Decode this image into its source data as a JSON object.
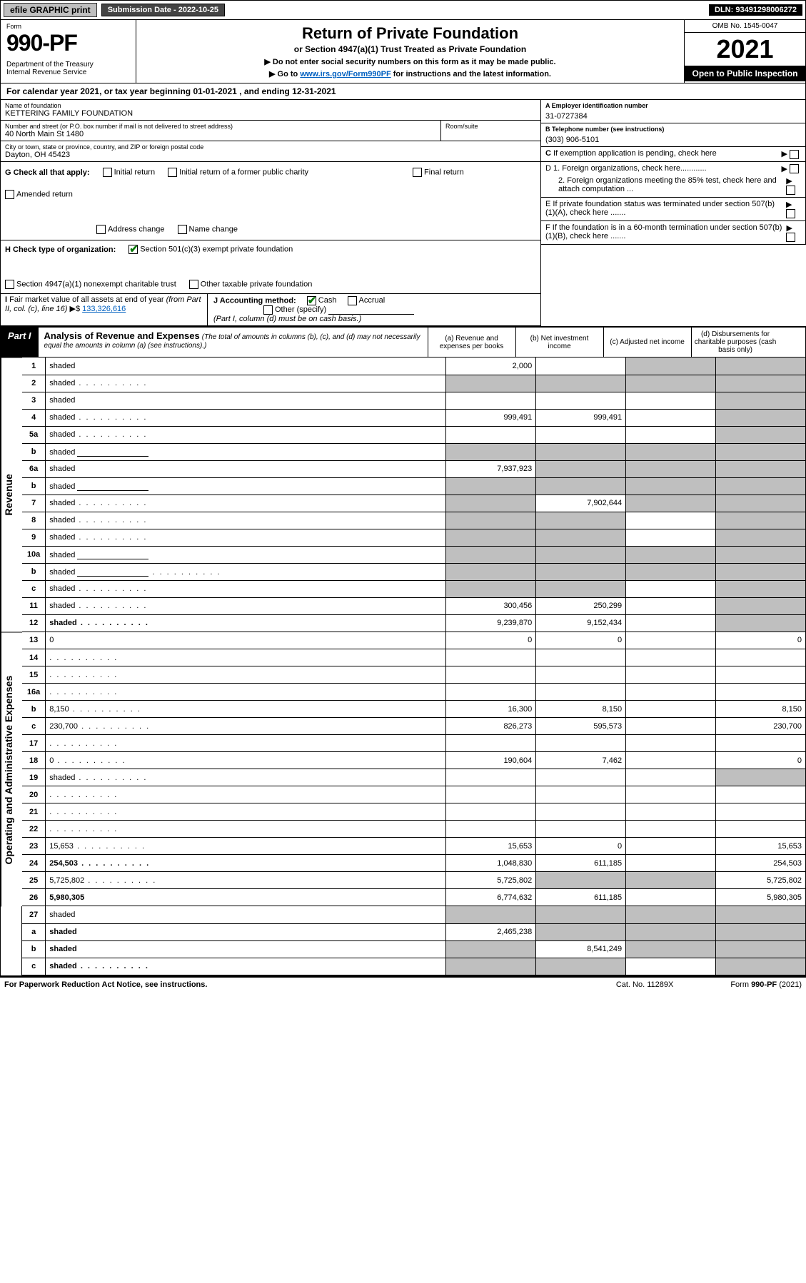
{
  "topbar": {
    "efile": "efile GRAPHIC print",
    "submission": "Submission Date - 2022-10-25",
    "dln": "DLN: 93491298006272"
  },
  "header": {
    "form_label": "Form",
    "form_no": "990-PF",
    "dept": "Department of the Treasury\nInternal Revenue Service",
    "title": "Return of Private Foundation",
    "subtitle": "or Section 4947(a)(1) Trust Treated as Private Foundation",
    "note1": "▶ Do not enter social security numbers on this form as it may be made public.",
    "note2_prefix": "▶ Go to ",
    "note2_link": "www.irs.gov/Form990PF",
    "note2_suffix": " for instructions and the latest information.",
    "omb": "OMB No. 1545-0047",
    "year": "2021",
    "open": "Open to Public Inspection"
  },
  "calyear": "For calendar year 2021, or tax year beginning 01-01-2021             , and ending 12-31-2021",
  "info": {
    "name_label": "Name of foundation",
    "name": "KETTERING FAMILY FOUNDATION",
    "addr_label": "Number and street (or P.O. box number if mail is not delivered to street address)",
    "addr": "40 North Main St 1480",
    "room_label": "Room/suite",
    "city_label": "City or town, state or province, country, and ZIP or foreign postal code",
    "city": "Dayton, OH  45423",
    "a_label": "A Employer identification number",
    "a_val": "31-0727384",
    "b_label": "B Telephone number (see instructions)",
    "b_val": "(303) 906-5101",
    "c_label": "C If exemption application is pending, check here",
    "g_label": "G Check all that apply:",
    "g_opts": [
      "Initial return",
      "Initial return of a former public charity",
      "Final return",
      "Amended return",
      "Address change",
      "Name change"
    ],
    "d1": "D 1. Foreign organizations, check here............",
    "d2": "2. Foreign organizations meeting the 85% test, check here and attach computation ...",
    "h_label": "H Check type of organization:",
    "h1": "Section 501(c)(3) exempt private foundation",
    "h2": "Section 4947(a)(1) nonexempt charitable trust",
    "h3": "Other taxable private foundation",
    "e_label": "E  If private foundation status was terminated under section 507(b)(1)(A), check here .......",
    "i_label": "I Fair market value of all assets at end of year (from Part II, col. (c), line 16) ▶$ ",
    "i_val": "133,326,616",
    "j_label": "J Accounting method:",
    "j_cash": "Cash",
    "j_accrual": "Accrual",
    "j_other": "Other (specify)",
    "j_note": "(Part I, column (d) must be on cash basis.)",
    "f_label": "F  If the foundation is in a 60-month termination under section 507(b)(1)(B), check here ......."
  },
  "part1": {
    "tab": "Part I",
    "title": "Analysis of Revenue and Expenses",
    "title_note": " (The total of amounts in columns (b), (c), and (d) may not necessarily equal the amounts in column (a) (see instructions).)",
    "cols": {
      "a": "(a)   Revenue and expenses per books",
      "b": "(b)   Net investment income",
      "c": "(c)   Adjusted net income",
      "d": "(d)   Disbursements for charitable purposes (cash basis only)"
    }
  },
  "sections": {
    "revenue": "Revenue",
    "opex": "Operating and Administrative Expenses"
  },
  "rows": [
    {
      "n": "1",
      "d": "shaded",
      "a": "2,000",
      "b": "",
      "c": "shaded"
    },
    {
      "n": "2",
      "d": "shaded",
      "a": "shaded",
      "b": "shaded",
      "c": "shaded",
      "dots": true
    },
    {
      "n": "3",
      "d": "shaded",
      "a": "",
      "b": "",
      "c": ""
    },
    {
      "n": "4",
      "d": "shaded",
      "a": "999,491",
      "b": "999,491",
      "c": "",
      "dots": true
    },
    {
      "n": "5a",
      "d": "shaded",
      "a": "",
      "b": "",
      "c": "",
      "dots": true
    },
    {
      "n": "b",
      "d": "shaded",
      "a": "shaded",
      "b": "shaded",
      "c": "shaded",
      "inline": true
    },
    {
      "n": "6a",
      "d": "shaded",
      "a": "7,937,923",
      "b": "shaded",
      "c": "shaded"
    },
    {
      "n": "b",
      "d": "shaded",
      "a": "shaded",
      "b": "shaded",
      "c": "shaded",
      "inline": true
    },
    {
      "n": "7",
      "d": "shaded",
      "a": "shaded",
      "b": "7,902,644",
      "c": "shaded",
      "dots": true
    },
    {
      "n": "8",
      "d": "shaded",
      "a": "shaded",
      "b": "shaded",
      "c": "",
      "dots": true
    },
    {
      "n": "9",
      "d": "shaded",
      "a": "shaded",
      "b": "shaded",
      "c": "",
      "dots": true
    },
    {
      "n": "10a",
      "d": "shaded",
      "a": "shaded",
      "b": "shaded",
      "c": "shaded",
      "inline": true
    },
    {
      "n": "b",
      "d": "shaded",
      "a": "shaded",
      "b": "shaded",
      "c": "shaded",
      "dots": true,
      "inline": true
    },
    {
      "n": "c",
      "d": "shaded",
      "a": "shaded",
      "b": "shaded",
      "c": "",
      "dots": true
    },
    {
      "n": "11",
      "d": "shaded",
      "a": "300,456",
      "b": "250,299",
      "c": "",
      "dots": true
    },
    {
      "n": "12",
      "d": "shaded",
      "a": "9,239,870",
      "b": "9,152,434",
      "c": "",
      "bold": true,
      "dots": true
    }
  ],
  "exp_rows": [
    {
      "n": "13",
      "d": "0",
      "a": "0",
      "b": "0",
      "c": ""
    },
    {
      "n": "14",
      "d": "",
      "a": "",
      "b": "",
      "c": "",
      "dots": true
    },
    {
      "n": "15",
      "d": "",
      "a": "",
      "b": "",
      "c": "",
      "dots": true
    },
    {
      "n": "16a",
      "d": "",
      "a": "",
      "b": "",
      "c": "",
      "dots": true
    },
    {
      "n": "b",
      "d": "8,150",
      "a": "16,300",
      "b": "8,150",
      "c": "",
      "dots": true
    },
    {
      "n": "c",
      "d": "230,700",
      "a": "826,273",
      "b": "595,573",
      "c": "",
      "dots": true
    },
    {
      "n": "17",
      "d": "",
      "a": "",
      "b": "",
      "c": "",
      "dots": true
    },
    {
      "n": "18",
      "d": "0",
      "a": "190,604",
      "b": "7,462",
      "c": "",
      "dots": true
    },
    {
      "n": "19",
      "d": "shaded",
      "a": "",
      "b": "",
      "c": "",
      "dots": true
    },
    {
      "n": "20",
      "d": "",
      "a": "",
      "b": "",
      "c": "",
      "dots": true
    },
    {
      "n": "21",
      "d": "",
      "a": "",
      "b": "",
      "c": "",
      "dots": true
    },
    {
      "n": "22",
      "d": "",
      "a": "",
      "b": "",
      "c": "",
      "dots": true
    },
    {
      "n": "23",
      "d": "15,653",
      "a": "15,653",
      "b": "0",
      "c": "",
      "dots": true
    },
    {
      "n": "24",
      "d": "254,503",
      "a": "1,048,830",
      "b": "611,185",
      "c": "",
      "bold": true,
      "dots": true
    },
    {
      "n": "25",
      "d": "5,725,802",
      "a": "5,725,802",
      "b": "shaded",
      "c": "shaded",
      "dots": true
    },
    {
      "n": "26",
      "d": "5,980,305",
      "a": "6,774,632",
      "b": "611,185",
      "c": "",
      "bold": true
    }
  ],
  "net_rows": [
    {
      "n": "27",
      "d": "shaded",
      "a": "shaded",
      "b": "shaded",
      "c": "shaded"
    },
    {
      "n": "a",
      "d": "shaded",
      "a": "2,465,238",
      "b": "shaded",
      "c": "shaded",
      "bold": true
    },
    {
      "n": "b",
      "d": "shaded",
      "a": "shaded",
      "b": "8,541,249",
      "c": "shaded",
      "bold": true
    },
    {
      "n": "c",
      "d": "shaded",
      "a": "shaded",
      "b": "shaded",
      "c": "",
      "bold": true,
      "dots": true
    }
  ],
  "footer": {
    "left": "For Paperwork Reduction Act Notice, see instructions.",
    "cat": "Cat. No. 11289X",
    "right": "Form 990-PF (2021)"
  }
}
